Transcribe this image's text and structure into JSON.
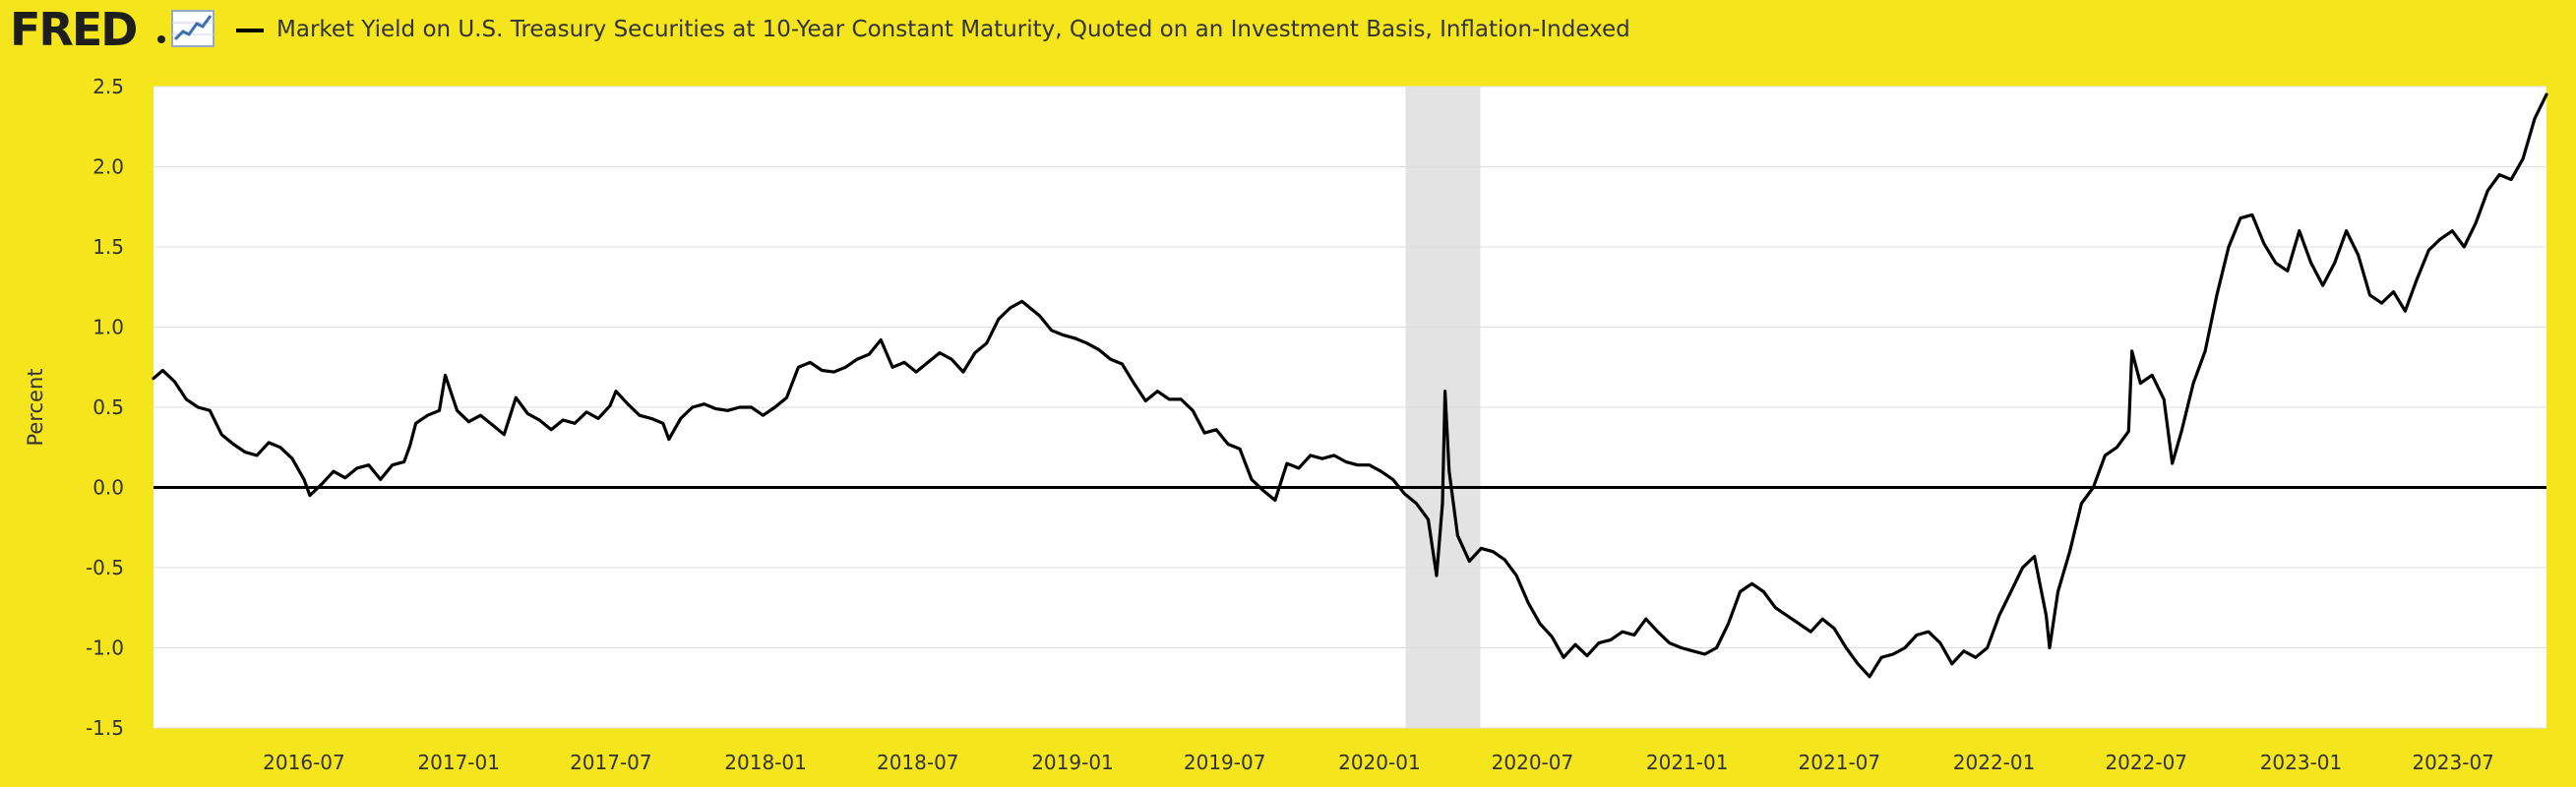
{
  "header": {
    "logo_text": "FRED",
    "logo_icon": "line-chart-icon",
    "series_title": "Market Yield on U.S. Treasury Securities at 10-Year Constant Maturity, Quoted on an Investment Basis, Inflation-Indexed"
  },
  "colors": {
    "background": "#F5E51C",
    "plot_background": "#FFFFFF",
    "line": "#000000",
    "recession": "#E3E3E3",
    "grid": "#DDDDDD",
    "text": "#333333"
  },
  "chart_data": {
    "type": "line",
    "title": "",
    "ylabel": "Percent",
    "xlabel": "",
    "ylim": [
      -1.5,
      2.5
    ],
    "xlim": [
      "2016-01-04",
      "2023-10-20"
    ],
    "grid": true,
    "y_ticks": [
      "-1.5",
      "-1.0",
      "-0.5",
      "0.0",
      "0.5",
      "1.0",
      "1.5",
      "2.0",
      "2.5"
    ],
    "y_tick_values": [
      -1.5,
      -1.0,
      -0.5,
      0.0,
      0.5,
      1.0,
      1.5,
      2.0,
      2.5
    ],
    "x_ticks": [
      "2016-07",
      "2017-01",
      "2017-07",
      "2018-01",
      "2018-07",
      "2019-01",
      "2019-07",
      "2020-01",
      "2020-07",
      "2021-01",
      "2021-07",
      "2022-01",
      "2022-07",
      "2023-01",
      "2023-07"
    ],
    "zero_line": 0.0,
    "recession_bands": [
      {
        "start": "2020-02-01",
        "end": "2020-04-30"
      }
    ],
    "series": [
      {
        "values": [
          [
            "2016-01-04",
            0.68
          ],
          [
            "2016-01-15",
            0.73
          ],
          [
            "2016-01-29",
            0.66
          ],
          [
            "2016-02-12",
            0.55
          ],
          [
            "2016-02-26",
            0.5
          ],
          [
            "2016-03-11",
            0.48
          ],
          [
            "2016-03-25",
            0.33
          ],
          [
            "2016-04-08",
            0.27
          ],
          [
            "2016-04-22",
            0.22
          ],
          [
            "2016-05-06",
            0.2
          ],
          [
            "2016-05-20",
            0.28
          ],
          [
            "2016-06-03",
            0.25
          ],
          [
            "2016-06-17",
            0.18
          ],
          [
            "2016-07-01",
            0.05
          ],
          [
            "2016-07-08",
            -0.05
          ],
          [
            "2016-07-22",
            0.02
          ],
          [
            "2016-08-05",
            0.1
          ],
          [
            "2016-08-19",
            0.06
          ],
          [
            "2016-09-02",
            0.12
          ],
          [
            "2016-09-16",
            0.14
          ],
          [
            "2016-09-30",
            0.05
          ],
          [
            "2016-10-14",
            0.14
          ],
          [
            "2016-10-28",
            0.16
          ],
          [
            "2016-11-04",
            0.26
          ],
          [
            "2016-11-11",
            0.4
          ],
          [
            "2016-11-25",
            0.45
          ],
          [
            "2016-12-09",
            0.48
          ],
          [
            "2016-12-16",
            0.7
          ],
          [
            "2016-12-30",
            0.48
          ],
          [
            "2017-01-13",
            0.41
          ],
          [
            "2017-01-27",
            0.45
          ],
          [
            "2017-02-10",
            0.39
          ],
          [
            "2017-02-24",
            0.33
          ],
          [
            "2017-03-10",
            0.56
          ],
          [
            "2017-03-24",
            0.46
          ],
          [
            "2017-04-07",
            0.42
          ],
          [
            "2017-04-21",
            0.36
          ],
          [
            "2017-05-05",
            0.42
          ],
          [
            "2017-05-19",
            0.4
          ],
          [
            "2017-06-02",
            0.47
          ],
          [
            "2017-06-16",
            0.43
          ],
          [
            "2017-06-30",
            0.51
          ],
          [
            "2017-07-07",
            0.6
          ],
          [
            "2017-07-21",
            0.52
          ],
          [
            "2017-08-04",
            0.45
          ],
          [
            "2017-08-18",
            0.43
          ],
          [
            "2017-09-01",
            0.4
          ],
          [
            "2017-09-08",
            0.3
          ],
          [
            "2017-09-22",
            0.43
          ],
          [
            "2017-10-06",
            0.5
          ],
          [
            "2017-10-20",
            0.52
          ],
          [
            "2017-11-03",
            0.49
          ],
          [
            "2017-11-17",
            0.48
          ],
          [
            "2017-12-01",
            0.5
          ],
          [
            "2017-12-15",
            0.5
          ],
          [
            "2017-12-29",
            0.45
          ],
          [
            "2018-01-12",
            0.5
          ],
          [
            "2018-01-26",
            0.56
          ],
          [
            "2018-02-09",
            0.75
          ],
          [
            "2018-02-23",
            0.78
          ],
          [
            "2018-03-09",
            0.73
          ],
          [
            "2018-03-23",
            0.72
          ],
          [
            "2018-04-06",
            0.75
          ],
          [
            "2018-04-20",
            0.8
          ],
          [
            "2018-05-04",
            0.83
          ],
          [
            "2018-05-18",
            0.92
          ],
          [
            "2018-06-01",
            0.75
          ],
          [
            "2018-06-15",
            0.78
          ],
          [
            "2018-06-29",
            0.72
          ],
          [
            "2018-07-13",
            0.78
          ],
          [
            "2018-07-27",
            0.84
          ],
          [
            "2018-08-10",
            0.8
          ],
          [
            "2018-08-24",
            0.72
          ],
          [
            "2018-09-07",
            0.84
          ],
          [
            "2018-09-21",
            0.9
          ],
          [
            "2018-10-05",
            1.05
          ],
          [
            "2018-10-19",
            1.12
          ],
          [
            "2018-11-02",
            1.16
          ],
          [
            "2018-11-09",
            1.13
          ],
          [
            "2018-11-23",
            1.07
          ],
          [
            "2018-12-07",
            0.98
          ],
          [
            "2018-12-21",
            0.95
          ],
          [
            "2019-01-04",
            0.93
          ],
          [
            "2019-01-18",
            0.9
          ],
          [
            "2019-02-01",
            0.86
          ],
          [
            "2019-02-15",
            0.8
          ],
          [
            "2019-03-01",
            0.77
          ],
          [
            "2019-03-15",
            0.65
          ],
          [
            "2019-03-29",
            0.54
          ],
          [
            "2019-04-12",
            0.6
          ],
          [
            "2019-04-26",
            0.55
          ],
          [
            "2019-05-10",
            0.55
          ],
          [
            "2019-05-24",
            0.48
          ],
          [
            "2019-06-07",
            0.34
          ],
          [
            "2019-06-21",
            0.36
          ],
          [
            "2019-07-05",
            0.27
          ],
          [
            "2019-07-19",
            0.24
          ],
          [
            "2019-08-02",
            0.05
          ],
          [
            "2019-08-16",
            -0.02
          ],
          [
            "2019-08-30",
            -0.08
          ],
          [
            "2019-09-13",
            0.15
          ],
          [
            "2019-09-27",
            0.12
          ],
          [
            "2019-10-11",
            0.2
          ],
          [
            "2019-10-25",
            0.18
          ],
          [
            "2019-11-08",
            0.2
          ],
          [
            "2019-11-22",
            0.16
          ],
          [
            "2019-12-06",
            0.14
          ],
          [
            "2019-12-20",
            0.14
          ],
          [
            "2020-01-03",
            0.1
          ],
          [
            "2020-01-17",
            0.05
          ],
          [
            "2020-01-31",
            -0.04
          ],
          [
            "2020-02-14",
            -0.1
          ],
          [
            "2020-02-28",
            -0.2
          ],
          [
            "2020-03-09",
            -0.55
          ],
          [
            "2020-03-16",
            -0.1
          ],
          [
            "2020-03-19",
            0.6
          ],
          [
            "2020-03-24",
            0.1
          ],
          [
            "2020-04-03",
            -0.3
          ],
          [
            "2020-04-17",
            -0.46
          ],
          [
            "2020-05-01",
            -0.38
          ],
          [
            "2020-05-15",
            -0.4
          ],
          [
            "2020-05-29",
            -0.45
          ],
          [
            "2020-06-12",
            -0.55
          ],
          [
            "2020-06-26",
            -0.72
          ],
          [
            "2020-07-10",
            -0.85
          ],
          [
            "2020-07-24",
            -0.93
          ],
          [
            "2020-08-07",
            -1.06
          ],
          [
            "2020-08-21",
            -0.98
          ],
          [
            "2020-09-04",
            -1.05
          ],
          [
            "2020-09-18",
            -0.97
          ],
          [
            "2020-10-02",
            -0.95
          ],
          [
            "2020-10-16",
            -0.9
          ],
          [
            "2020-10-30",
            -0.92
          ],
          [
            "2020-11-13",
            -0.82
          ],
          [
            "2020-11-27",
            -0.9
          ],
          [
            "2020-12-11",
            -0.97
          ],
          [
            "2020-12-25",
            -1.0
          ],
          [
            "2021-01-08",
            -1.02
          ],
          [
            "2021-01-22",
            -1.04
          ],
          [
            "2021-02-05",
            -1.0
          ],
          [
            "2021-02-19",
            -0.85
          ],
          [
            "2021-03-05",
            -0.65
          ],
          [
            "2021-03-19",
            -0.6
          ],
          [
            "2021-04-02",
            -0.65
          ],
          [
            "2021-04-16",
            -0.75
          ],
          [
            "2021-04-30",
            -0.8
          ],
          [
            "2021-05-14",
            -0.85
          ],
          [
            "2021-05-28",
            -0.9
          ],
          [
            "2021-06-11",
            -0.82
          ],
          [
            "2021-06-25",
            -0.88
          ],
          [
            "2021-07-09",
            -1.0
          ],
          [
            "2021-07-23",
            -1.1
          ],
          [
            "2021-08-06",
            -1.18
          ],
          [
            "2021-08-20",
            -1.06
          ],
          [
            "2021-09-03",
            -1.04
          ],
          [
            "2021-09-17",
            -1.0
          ],
          [
            "2021-10-01",
            -0.92
          ],
          [
            "2021-10-15",
            -0.9
          ],
          [
            "2021-10-29",
            -0.97
          ],
          [
            "2021-11-12",
            -1.1
          ],
          [
            "2021-11-26",
            -1.02
          ],
          [
            "2021-12-10",
            -1.06
          ],
          [
            "2021-12-24",
            -1.0
          ],
          [
            "2022-01-07",
            -0.8
          ],
          [
            "2022-01-21",
            -0.65
          ],
          [
            "2022-02-04",
            -0.5
          ],
          [
            "2022-02-18",
            -0.43
          ],
          [
            "2022-03-04",
            -0.8
          ],
          [
            "2022-03-08",
            -1.0
          ],
          [
            "2022-03-18",
            -0.65
          ],
          [
            "2022-04-01",
            -0.4
          ],
          [
            "2022-04-15",
            -0.1
          ],
          [
            "2022-04-29",
            0.0
          ],
          [
            "2022-05-13",
            0.2
          ],
          [
            "2022-05-27",
            0.25
          ],
          [
            "2022-06-10",
            0.35
          ],
          [
            "2022-06-14",
            0.85
          ],
          [
            "2022-06-24",
            0.65
          ],
          [
            "2022-07-08",
            0.7
          ],
          [
            "2022-07-22",
            0.55
          ],
          [
            "2022-08-01",
            0.15
          ],
          [
            "2022-08-12",
            0.35
          ],
          [
            "2022-08-26",
            0.65
          ],
          [
            "2022-09-09",
            0.85
          ],
          [
            "2022-09-23",
            1.2
          ],
          [
            "2022-10-07",
            1.5
          ],
          [
            "2022-10-21",
            1.68
          ],
          [
            "2022-11-04",
            1.7
          ],
          [
            "2022-11-18",
            1.52
          ],
          [
            "2022-12-02",
            1.4
          ],
          [
            "2022-12-16",
            1.35
          ],
          [
            "2022-12-30",
            1.6
          ],
          [
            "2023-01-13",
            1.4
          ],
          [
            "2023-01-27",
            1.26
          ],
          [
            "2023-02-10",
            1.4
          ],
          [
            "2023-02-24",
            1.6
          ],
          [
            "2023-03-10",
            1.45
          ],
          [
            "2023-03-24",
            1.2
          ],
          [
            "2023-04-07",
            1.15
          ],
          [
            "2023-04-21",
            1.22
          ],
          [
            "2023-05-05",
            1.1
          ],
          [
            "2023-05-19",
            1.3
          ],
          [
            "2023-06-02",
            1.48
          ],
          [
            "2023-06-16",
            1.55
          ],
          [
            "2023-06-30",
            1.6
          ],
          [
            "2023-07-14",
            1.5
          ],
          [
            "2023-07-28",
            1.65
          ],
          [
            "2023-08-11",
            1.85
          ],
          [
            "2023-08-25",
            1.95
          ],
          [
            "2023-09-08",
            1.92
          ],
          [
            "2023-09-22",
            2.05
          ],
          [
            "2023-10-06",
            2.3
          ],
          [
            "2023-10-20",
            2.45
          ]
        ]
      }
    ]
  }
}
